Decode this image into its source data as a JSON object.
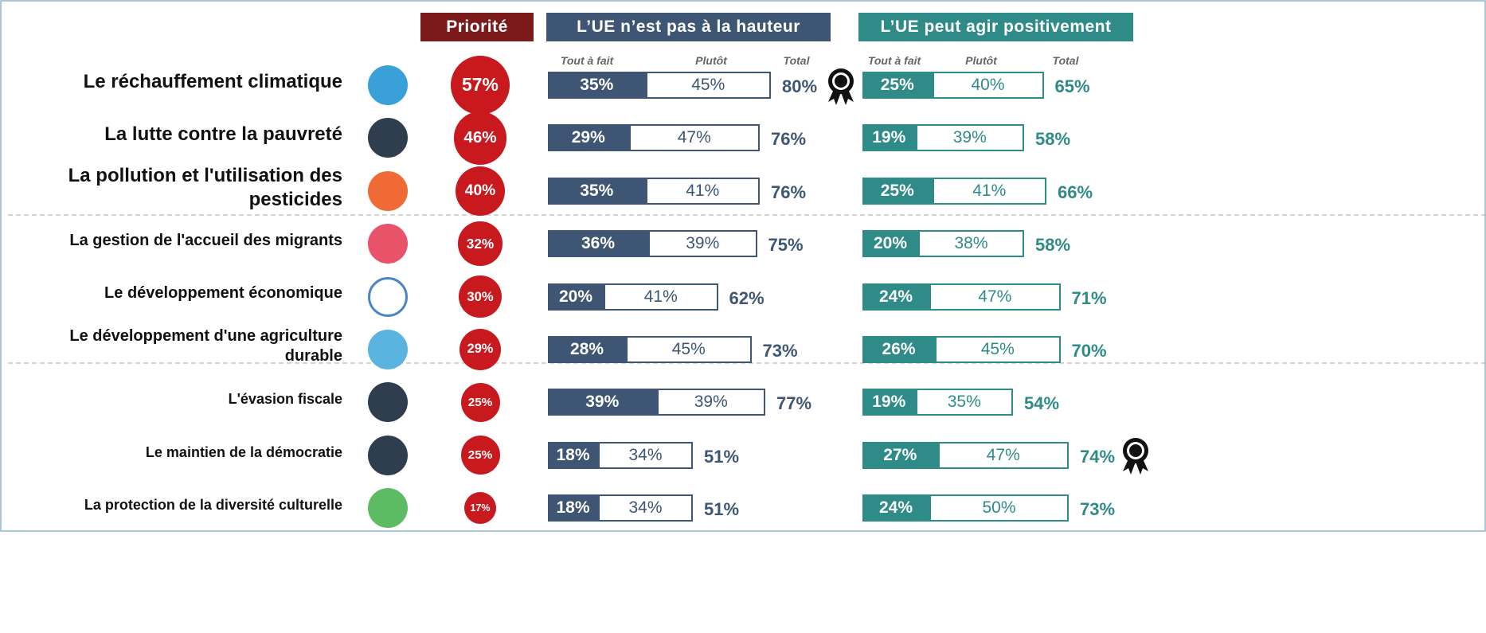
{
  "chart_data": {
    "type": "bar_table",
    "categories": [
      "Le réchauffement climatique",
      "La lutte contre la pauvreté",
      "La pollution et l'utilisation des pesticides",
      "La gestion de l'accueil des migrants",
      "Le développement économique",
      "Le développement d'une agriculture durable",
      "L'évasion fiscale",
      "Le maintien de la démocratie",
      "La protection de la diversité culturelle"
    ],
    "priority": {
      "name": "Priorité",
      "color": "#c8191e",
      "header_color": "#7b1a1a",
      "values": [
        57,
        46,
        40,
        32,
        30,
        29,
        25,
        25,
        17
      ],
      "value_labels": [
        "57%",
        "46%",
        "40%",
        "32%",
        "30%",
        "29%",
        "25%",
        "25%",
        "17%"
      ]
    },
    "groups": [
      {
        "name": "L’UE n’est pas à la hauteur",
        "color": "#3e5674",
        "series": [
          {
            "name": "Tout à fait",
            "values": [
              35,
              29,
              35,
              36,
              20,
              28,
              39,
              18,
              18
            ],
            "value_labels": [
              "35%",
              "29%",
              "35%",
              "36%",
              "20%",
              "28%",
              "39%",
              "18%",
              "18%"
            ]
          },
          {
            "name": "Plutôt",
            "values": [
              45,
              47,
              41,
              39,
              41,
              45,
              39,
              34,
              34
            ],
            "value_labels": [
              "45%",
              "47%",
              "41%",
              "39%",
              "41%",
              "45%",
              "39%",
              "34%",
              "34%"
            ]
          },
          {
            "name": "Total",
            "values": [
              80,
              76,
              76,
              75,
              62,
              73,
              77,
              51,
              51
            ],
            "value_labels": [
              "80%",
              "76%",
              "76%",
              "75%",
              "62%",
              "73%",
              "77%",
              "51%",
              "51%"
            ]
          }
        ]
      },
      {
        "name": "L’UE peut agir positivement",
        "color": "#2e8b87",
        "series": [
          {
            "name": "Tout à fait",
            "values": [
              25,
              19,
              25,
              20,
              24,
              26,
              19,
              27,
              24
            ],
            "value_labels": [
              "25%",
              "19%",
              "25%",
              "20%",
              "24%",
              "26%",
              "19%",
              "27%",
              "24%"
            ]
          },
          {
            "name": "Plutôt",
            "values": [
              40,
              39,
              41,
              38,
              47,
              45,
              35,
              47,
              50
            ],
            "value_labels": [
              "40%",
              "39%",
              "41%",
              "38%",
              "47%",
              "45%",
              "35%",
              "47%",
              "50%"
            ]
          },
          {
            "name": "Total",
            "values": [
              65,
              58,
              66,
              58,
              71,
              70,
              54,
              74,
              73
            ],
            "value_labels": [
              "65%",
              "58%",
              "66%",
              "58%",
              "71%",
              "70%",
              "54%",
              "74%",
              "73%"
            ]
          }
        ]
      }
    ]
  }
}
